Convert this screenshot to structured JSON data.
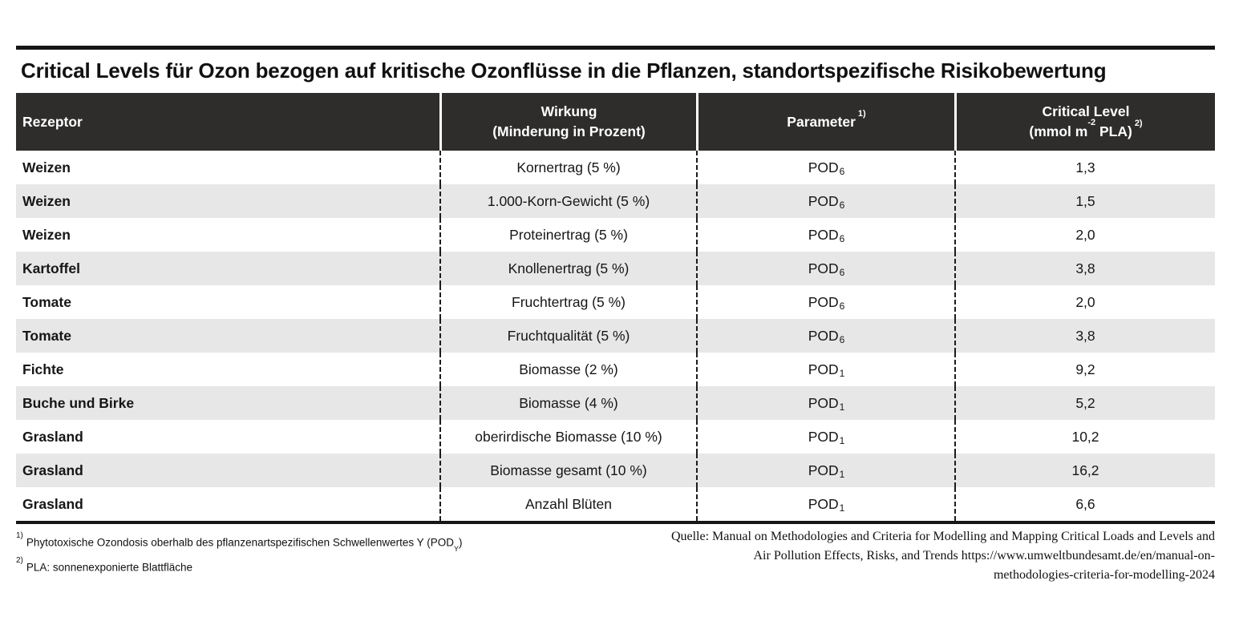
{
  "page": {
    "title": "Critical Levels für Ozon bezogen auf kritische Ozonflüsse in die Pflanzen, standortspezifische Risikobewertung"
  },
  "colors": {
    "header_bg": "#2e2d2c",
    "header_text": "#ffffff",
    "stripe": "#e7e7e7",
    "rule": "#161616"
  },
  "table": {
    "header": {
      "col1": "Rezeptor",
      "col2_line1": "Wirkung",
      "col2_line2": "(Minderung in Prozent)",
      "col3_label": "Parameter",
      "col3_sup": "1)",
      "col4_line1": "Critical Level",
      "col4_pre": "(mmol m",
      "col4_sup_exp": "-2",
      "col4_mid": " PLA)",
      "col4_sup_note": "2)"
    },
    "rows": [
      {
        "receptor": "Weizen",
        "wirkung": "Kornertrag (5 %)",
        "parameter_base": "POD",
        "parameter_sub": "6",
        "critical_level": "1,3"
      },
      {
        "receptor": "Weizen",
        "wirkung": "1.000-Korn-Gewicht (5 %)",
        "parameter_base": "POD",
        "parameter_sub": "6",
        "critical_level": "1,5"
      },
      {
        "receptor": "Weizen",
        "wirkung": "Proteinertrag (5 %)",
        "parameter_base": "POD",
        "parameter_sub": "6",
        "critical_level": "2,0"
      },
      {
        "receptor": "Kartoffel",
        "wirkung": "Knollenertrag (5 %)",
        "parameter_base": "POD",
        "parameter_sub": "6",
        "critical_level": "3,8"
      },
      {
        "receptor": "Tomate",
        "wirkung": "Fruchtertrag (5 %)",
        "parameter_base": "POD",
        "parameter_sub": "6",
        "critical_level": "2,0"
      },
      {
        "receptor": "Tomate",
        "wirkung": "Fruchtqualität (5 %)",
        "parameter_base": "POD",
        "parameter_sub": "6",
        "critical_level": "3,8"
      },
      {
        "receptor": "Fichte",
        "wirkung": "Biomasse (2 %)",
        "parameter_base": "POD",
        "parameter_sub": "1",
        "critical_level": "9,2"
      },
      {
        "receptor": "Buche und Birke",
        "wirkung": "Biomasse (4 %)",
        "parameter_base": "POD",
        "parameter_sub": "1",
        "critical_level": "5,2"
      },
      {
        "receptor": "Grasland",
        "wirkung": "oberirdische Biomasse (10 %)",
        "parameter_base": "POD",
        "parameter_sub": "1",
        "critical_level": "10,2"
      },
      {
        "receptor": "Grasland",
        "wirkung": "Biomasse gesamt (10 %)",
        "parameter_base": "POD",
        "parameter_sub": "1",
        "critical_level": "16,2"
      },
      {
        "receptor": "Grasland",
        "wirkung": "Anzahl Blüten",
        "parameter_base": "POD",
        "parameter_sub": "1",
        "critical_level": "6,6"
      }
    ]
  },
  "footnotes": [
    {
      "marker": "1)",
      "text_before": "Phytotoxische Ozondosis oberhalb des  pflanzenartspezifischen Schwellenwertes Y (POD",
      "sub": "Y",
      "text_after": ")"
    },
    {
      "marker": "2)",
      "text_before": "PLA: sonnenexponierte Blattfläche",
      "sub": "",
      "text_after": ""
    }
  ],
  "source": {
    "lines": [
      "Quelle: Manual on Methodologies and Criteria for Modelling and Mapping Critical Loads and Levels and",
      "Air Pollution Effects, Risks, and Trends https://www.umweltbundesamt.de/en/manual-on-",
      "methodologies-criteria-for-modelling-2024"
    ]
  },
  "chart_data": {
    "type": "table",
    "title": "Critical Levels für Ozon bezogen auf kritische Ozonflüsse in die Pflanzen, standortspezifische Risikobewertung",
    "columns": [
      "Rezeptor",
      "Wirkung (Minderung in Prozent)",
      "Parameter 1)",
      "Critical Level (mmol m-2 PLA) 2)"
    ],
    "rows": [
      [
        "Weizen",
        "Kornertrag (5 %)",
        "POD6",
        "1,3"
      ],
      [
        "Weizen",
        "1.000-Korn-Gewicht (5 %)",
        "POD6",
        "1,5"
      ],
      [
        "Weizen",
        "Proteinertrag (5 %)",
        "POD6",
        "2,0"
      ],
      [
        "Kartoffel",
        "Knollenertrag (5 %)",
        "POD6",
        "3,8"
      ],
      [
        "Tomate",
        "Fruchtertrag (5 %)",
        "POD6",
        "2,0"
      ],
      [
        "Tomate",
        "Fruchtqualität (5 %)",
        "POD6",
        "3,8"
      ],
      [
        "Fichte",
        "Biomasse (2 %)",
        "POD1",
        "9,2"
      ],
      [
        "Buche und Birke",
        "Biomasse (4 %)",
        "POD1",
        "5,2"
      ],
      [
        "Grasland",
        "oberirdische Biomasse (10 %)",
        "POD1",
        "10,2"
      ],
      [
        "Grasland",
        "Biomasse gesamt (10 %)",
        "POD1",
        "16,2"
      ],
      [
        "Grasland",
        "Anzahl Blüten",
        "POD1",
        "6,6"
      ]
    ],
    "footnotes": [
      "1) Phytotoxische Ozondosis oberhalb des pflanzenartspezifischen Schwellenwertes Y (POD_Y)",
      "2) PLA: sonnenexponierte Blattfläche"
    ],
    "source": "Quelle: Manual on Methodologies and Criteria for Modelling and Mapping Critical Loads and Levels and Air Pollution Effects, Risks, and Trends https://www.umweltbundesamt.de/en/manual-on-methodologies-criteria-for-modelling-2024"
  }
}
